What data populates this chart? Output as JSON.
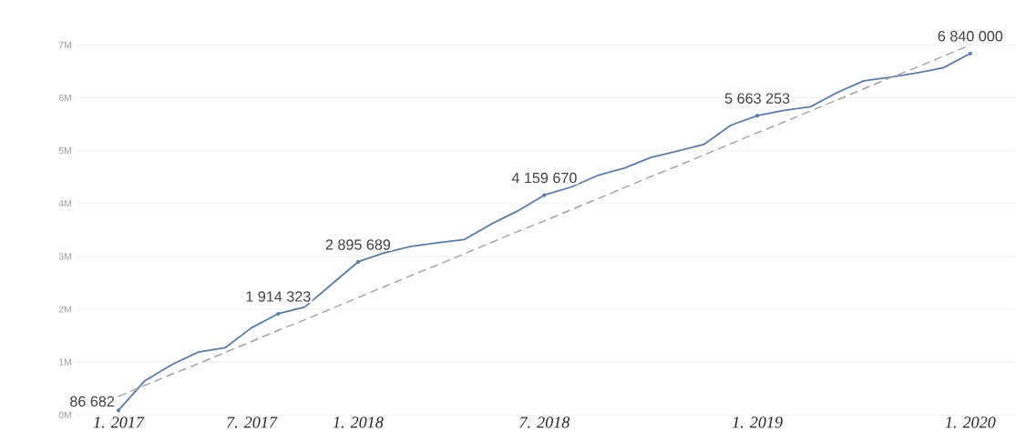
{
  "chart_data": {
    "type": "line",
    "categories": [
      "1. 2017",
      null,
      null,
      null,
      null,
      "7. 2017",
      null,
      null,
      null,
      "1. 2018",
      null,
      null,
      null,
      null,
      null,
      null,
      "7. 2018",
      null,
      null,
      null,
      null,
      null,
      null,
      null,
      "1. 2019",
      null,
      null,
      null,
      null,
      null,
      null,
      null,
      "1. 2020"
    ],
    "ylim": [
      0,
      7000000
    ],
    "yticks": [
      {
        "value": 0,
        "label": "0M"
      },
      {
        "value": 1000000,
        "label": "1M"
      },
      {
        "value": 2000000,
        "label": "2M"
      },
      {
        "value": 3000000,
        "label": "3M"
      },
      {
        "value": 4000000,
        "label": "4M"
      },
      {
        "value": 5000000,
        "label": "5M"
      },
      {
        "value": 6000000,
        "label": "6M"
      },
      {
        "value": 7000000,
        "label": "7M"
      }
    ],
    "grid": "y",
    "series": [
      {
        "color": "#5a7ba6",
        "values": [
          86682,
          650000,
          950000,
          1190000,
          1270000,
          1650000,
          1914323,
          2040000,
          2470000,
          2895689,
          3070000,
          3190000,
          3260000,
          3320000,
          3610000,
          3860000,
          4159670,
          4310000,
          4530000,
          4670000,
          4870000,
          4990000,
          5120000,
          5480000,
          5663253,
          5760000,
          5830000,
          6100000,
          6320000,
          6390000,
          6470000,
          6570000,
          6840000
        ],
        "value_labels": [
          "86 682",
          null,
          null,
          null,
          null,
          null,
          "1 914 323",
          null,
          null,
          "2 895 689",
          null,
          null,
          null,
          null,
          null,
          null,
          "4 159 670",
          null,
          null,
          null,
          null,
          null,
          null,
          null,
          "5 663 253",
          null,
          null,
          null,
          null,
          null,
          null,
          null,
          "6 840 000"
        ]
      },
      {
        "type": "line",
        "color": "#a0a0a0",
        "line_style": "dashed",
        "values": [
          350000,
          560000,
          770000,
          970000,
          1180000,
          1390000,
          1600000,
          1800000,
          2010000,
          2220000,
          2430000,
          2640000,
          2840000,
          3050000,
          3260000,
          3470000,
          3670000,
          3880000,
          4090000,
          4300000,
          4510000,
          4710000,
          4920000,
          5130000,
          5340000,
          5540000,
          5750000,
          5960000,
          6170000,
          6380000,
          6580000,
          6790000,
          7000000
        ]
      }
    ]
  }
}
